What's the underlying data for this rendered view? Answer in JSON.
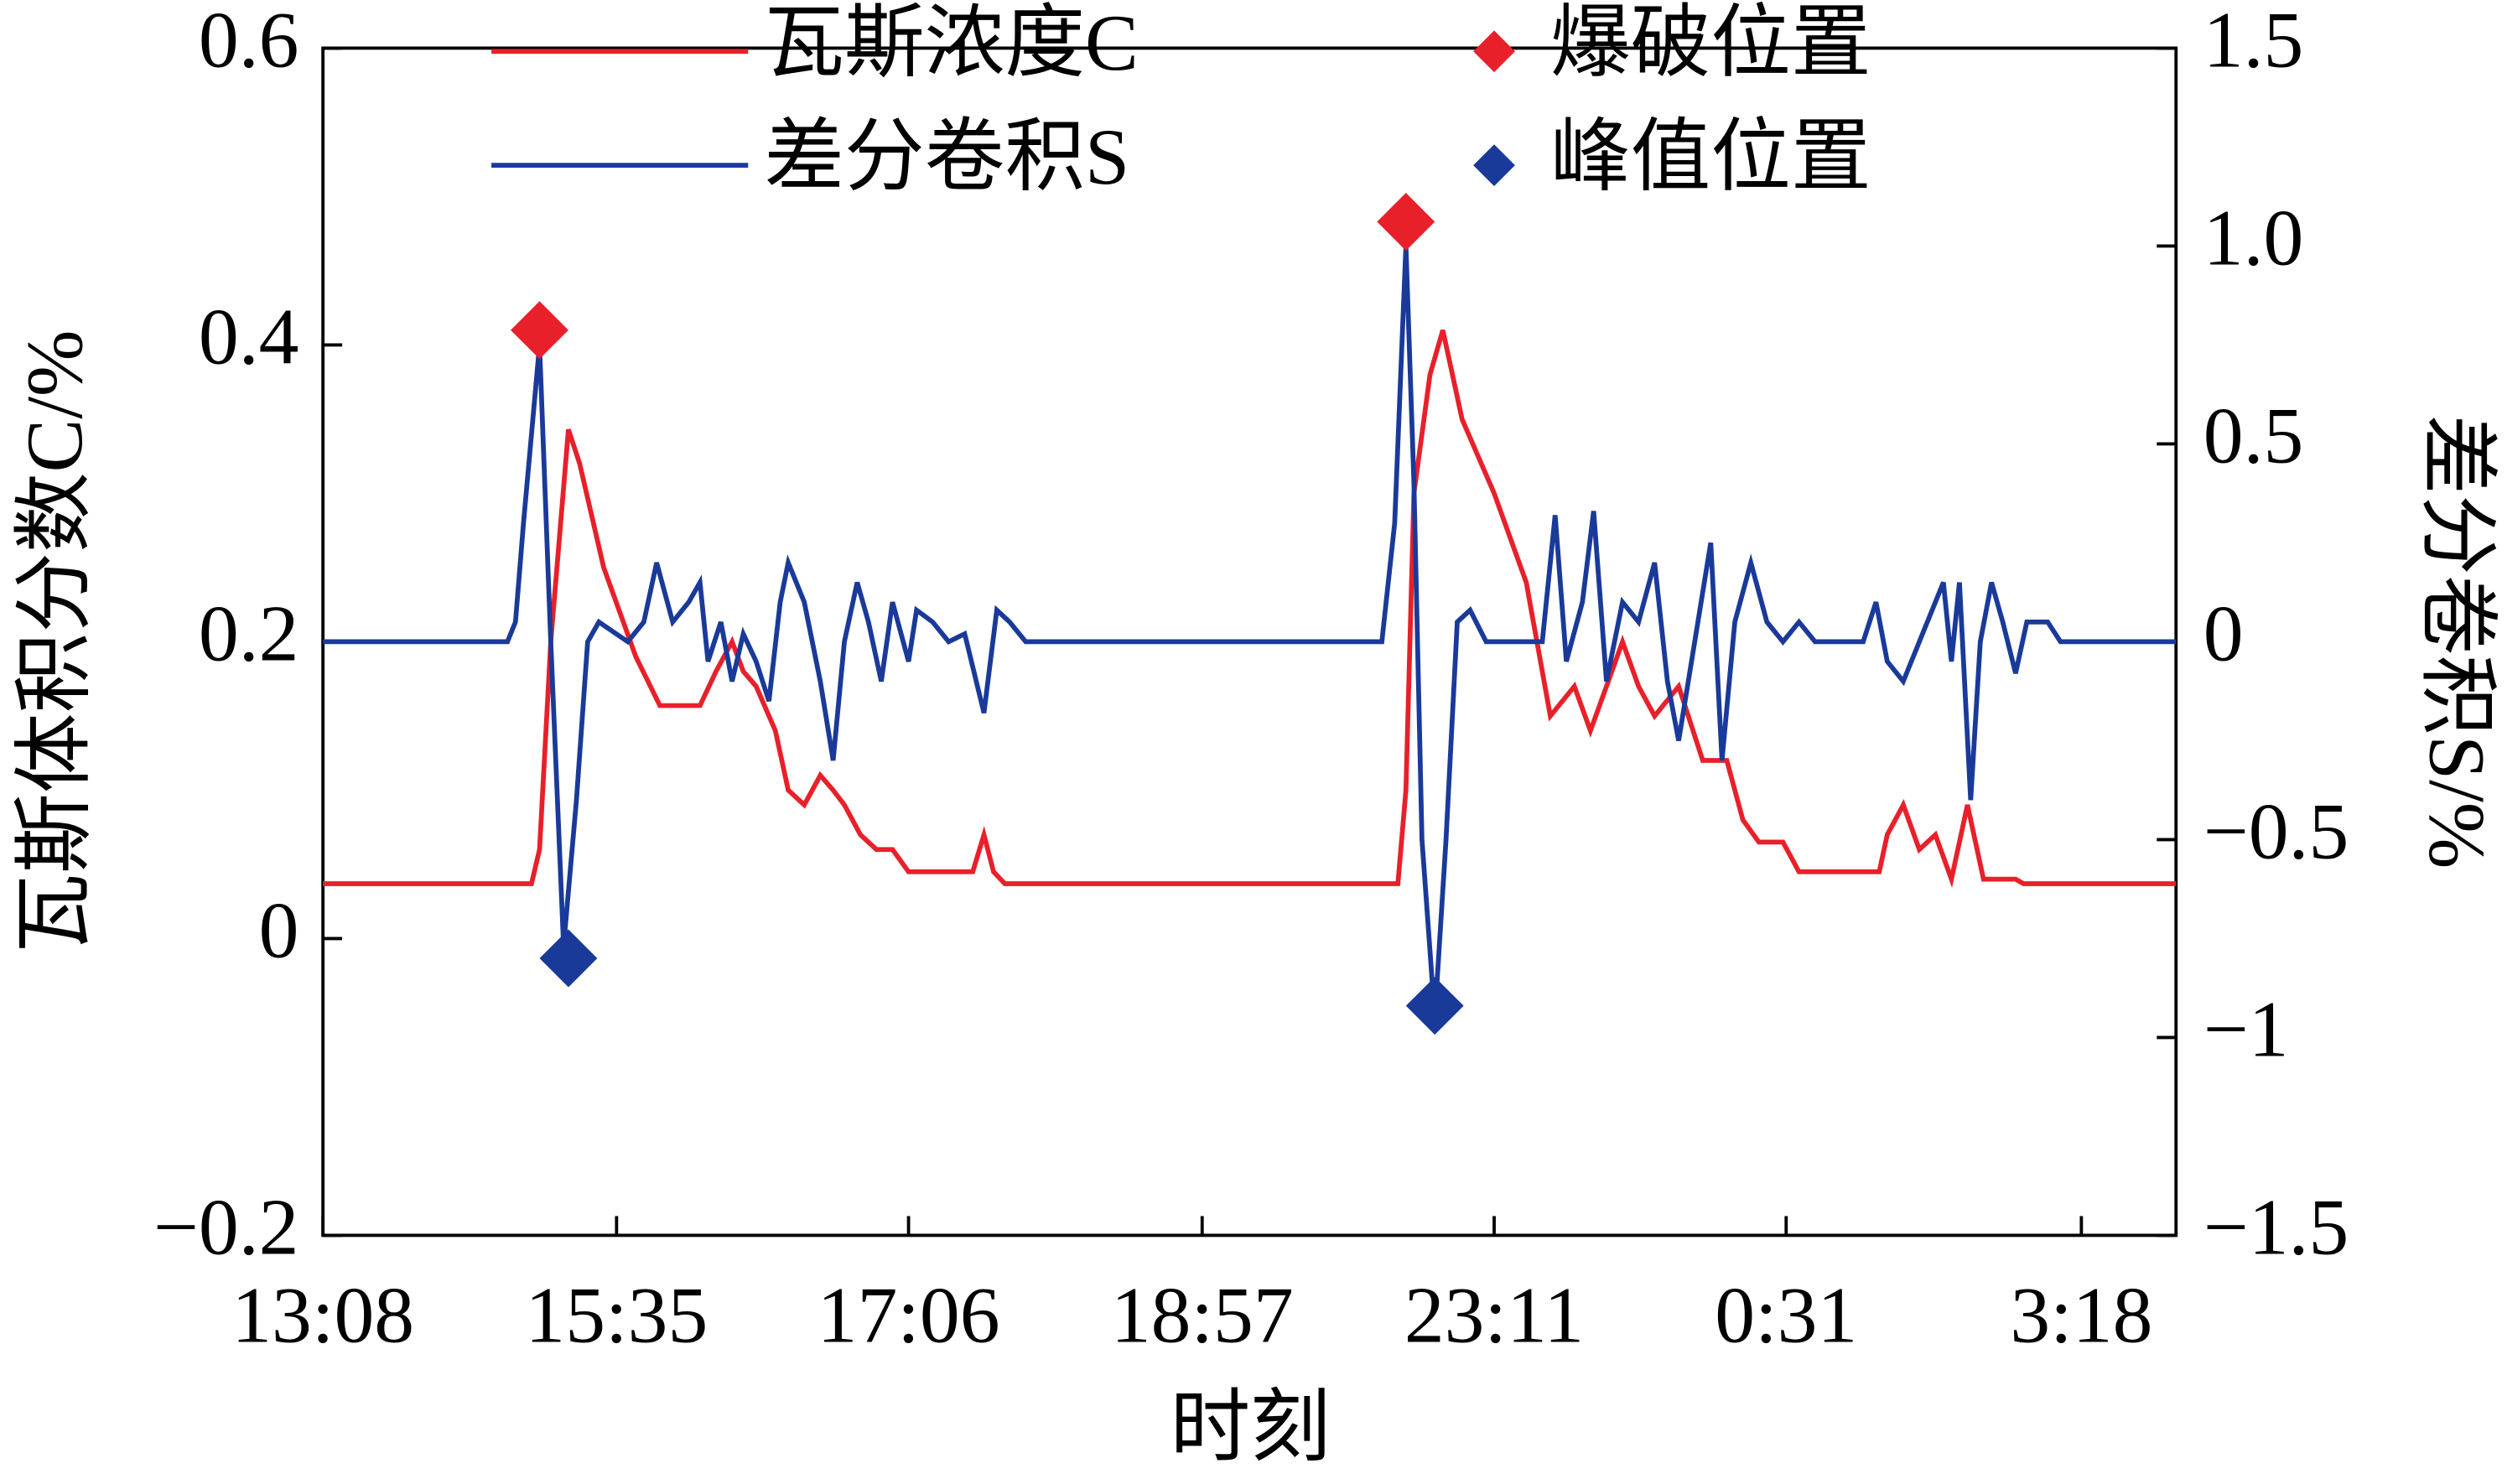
{
  "chart_data": {
    "type": "line",
    "xlabel": "时刻",
    "ylabel": "瓦斯体积分数C/%",
    "y2label": "差分卷积S/%",
    "xlim": [
      0,
      1155
    ],
    "xticks": [
      {
        "value": 0,
        "label": "13:08"
      },
      {
        "value": 183,
        "label": "15:35"
      },
      {
        "value": 365,
        "label": "17:06"
      },
      {
        "value": 548,
        "label": "18:57"
      },
      {
        "value": 730,
        "label": "23:11"
      },
      {
        "value": 912,
        "label": "0:31"
      },
      {
        "value": 1096,
        "label": "3:18"
      }
    ],
    "ylim": [
      -0.2,
      0.6
    ],
    "yticks": [
      {
        "value": -0.2,
        "label": "−0.2"
      },
      0,
      0.2,
      0.4,
      0.6
    ],
    "y2lim": [
      -1.5,
      1.5
    ],
    "y2ticks": [
      {
        "value": -1.5,
        "label": "−1.5"
      },
      {
        "value": -1,
        "label": "−1"
      },
      {
        "value": -0.5,
        "label": "−0.5"
      },
      0,
      0.5,
      {
        "value": 1,
        "label": "1.0"
      },
      1.5
    ],
    "series": [
      {
        "name": "瓦斯浓度C",
        "color": "#e8202a",
        "x": [
          0,
          130,
          135,
          142,
          153,
          160,
          175,
          195,
          210,
          220,
          235,
          245,
          255,
          262,
          270,
          282,
          290,
          300,
          310,
          318,
          325,
          335,
          345,
          355,
          365,
          380,
          405,
          412,
          418,
          425,
          670,
          675,
          680,
          690,
          698,
          710,
          730,
          750,
          765,
          780,
          790,
          800,
          810,
          820,
          830,
          845,
          860,
          875,
          885,
          895,
          910,
          920,
          970,
          975,
          985,
          995,
          1005,
          1015,
          1025,
          1035,
          1055,
          1060,
          1155
        ],
        "values": [
          0.037,
          0.037,
          0.06,
          0.2,
          0.343,
          0.32,
          0.25,
          0.19,
          0.157,
          0.157,
          0.157,
          0.18,
          0.2,
          0.18,
          0.17,
          0.14,
          0.1,
          0.09,
          0.11,
          0.1,
          0.09,
          0.07,
          0.06,
          0.06,
          0.045,
          0.045,
          0.045,
          0.07,
          0.045,
          0.037,
          0.037,
          0.1,
          0.3,
          0.38,
          0.41,
          0.35,
          0.3,
          0.24,
          0.15,
          0.17,
          0.14,
          0.17,
          0.2,
          0.17,
          0.15,
          0.17,
          0.12,
          0.12,
          0.08,
          0.065,
          0.065,
          0.045,
          0.045,
          0.07,
          0.09,
          0.06,
          0.07,
          0.04,
          0.09,
          0.04,
          0.04,
          0.037,
          0.037
        ]
      },
      {
        "name": "差分卷积S",
        "color": "#1a3a9a",
        "axis": "y2",
        "x": [
          0,
          115,
          120,
          125,
          135,
          142,
          150,
          158,
          165,
          172,
          190,
          200,
          208,
          218,
          228,
          235,
          240,
          248,
          255,
          262,
          270,
          278,
          285,
          290,
          300,
          310,
          318,
          325,
          333,
          340,
          348,
          355,
          365,
          370,
          380,
          390,
          400,
          412,
          420,
          428,
          438,
          660,
          668,
          675,
          680,
          685,
          693,
          700,
          707,
          715,
          725,
          760,
          768,
          775,
          785,
          792,
          800,
          810,
          820,
          830,
          838,
          845,
          855,
          865,
          872,
          880,
          890,
          900,
          910,
          920,
          930,
          960,
          968,
          975,
          985,
          995,
          1005,
          1010,
          1015,
          1020,
          1027,
          1033,
          1040,
          1047,
          1055,
          1062,
          1075,
          1083,
          1155
        ],
        "values": [
          0,
          0,
          0.05,
          0.3,
          0.75,
          0,
          -0.77,
          -0.4,
          0,
          0.05,
          0,
          0.05,
          0.2,
          0.05,
          0.1,
          0.15,
          -0.05,
          0.05,
          -0.1,
          0.02,
          -0.05,
          -0.15,
          0.1,
          0.2,
          0.1,
          -0.1,
          -0.3,
          0,
          0.15,
          0.05,
          -0.1,
          0.1,
          -0.05,
          0.08,
          0.05,
          0,
          0.02,
          -0.18,
          0.08,
          0.05,
          0,
          0,
          0.3,
          1.0,
          0.4,
          -0.5,
          -0.95,
          -0.5,
          0.05,
          0.08,
          0,
          0,
          0.32,
          -0.05,
          0.1,
          0.33,
          -0.1,
          0.1,
          0.05,
          0.2,
          -0.1,
          -0.25,
          0,
          0.25,
          -0.3,
          0.05,
          0.2,
          0.05,
          0,
          0.05,
          0,
          0,
          0.1,
          -0.05,
          -0.1,
          0,
          0.1,
          0.15,
          -0.05,
          0.15,
          -0.4,
          0,
          0.15,
          0.05,
          -0.08,
          0.05,
          0.05,
          0,
          0
        ]
      }
    ],
    "markers": [
      {
        "name": "爆破位置",
        "color": "#e8202a",
        "x": [
          135,
          675
        ],
        "values": [
          0.41,
          0.483
        ]
      },
      {
        "name": "峰值位置",
        "color": "#1a3a9a",
        "axis": "y2",
        "x": [
          153,
          693
        ],
        "values": [
          -0.8,
          -0.92
        ]
      }
    ]
  }
}
